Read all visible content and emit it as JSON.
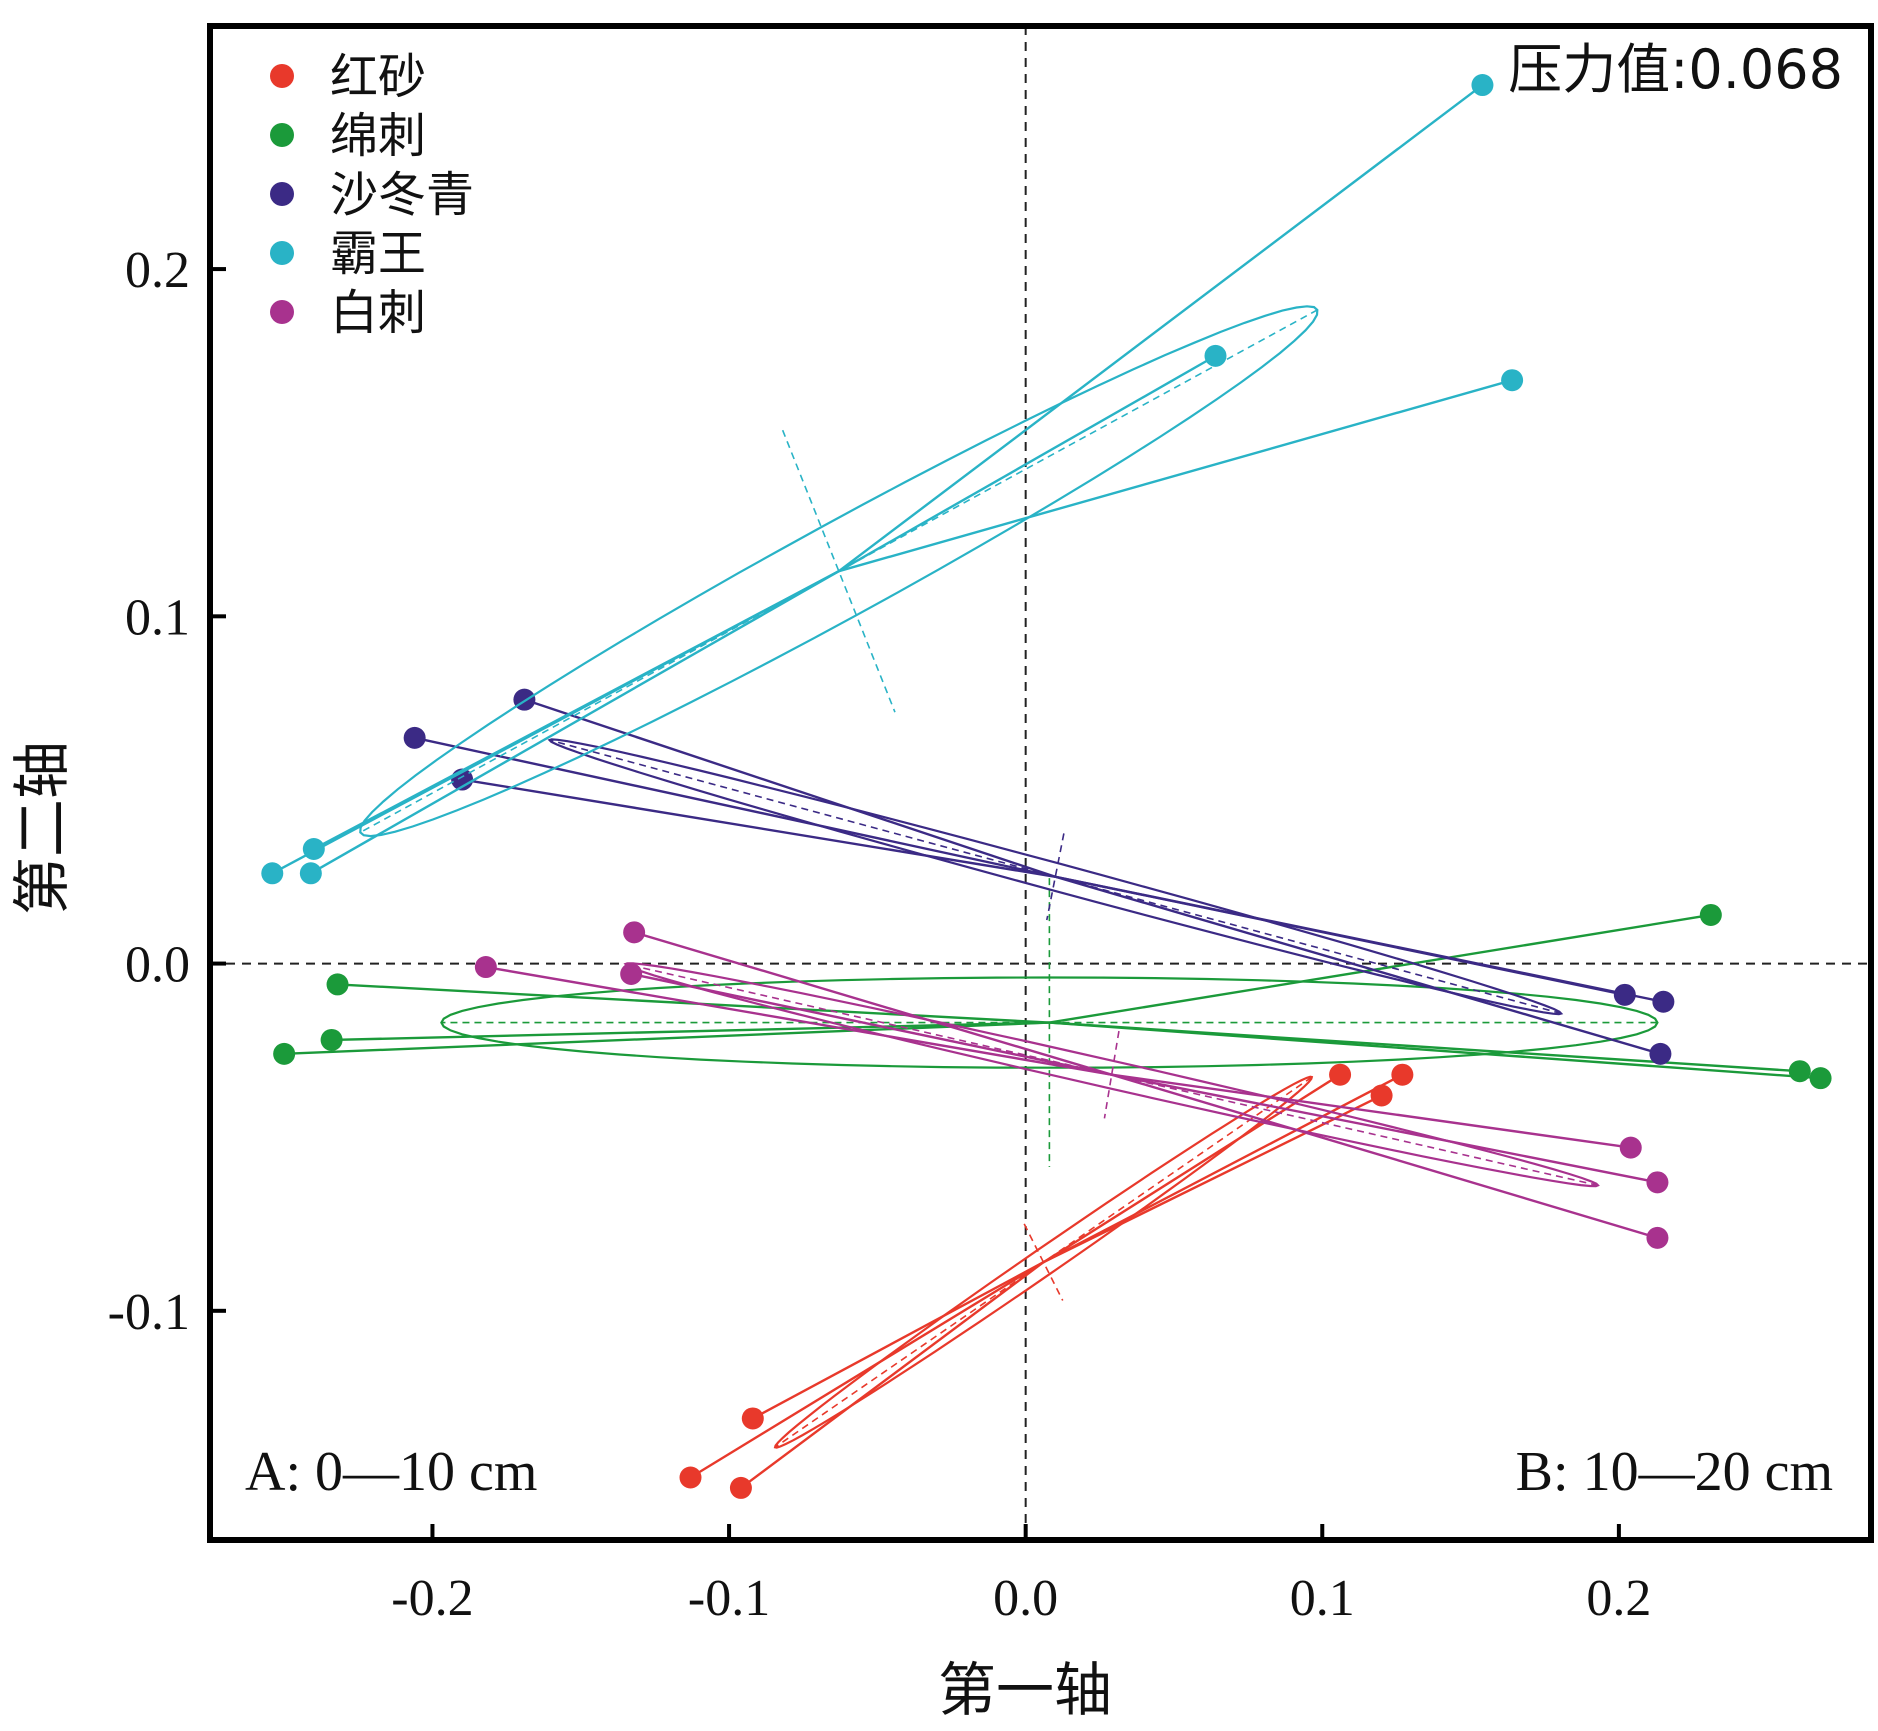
{
  "chart_data": {
    "type": "scatter",
    "xlabel": "第一轴",
    "ylabel": "第二轴",
    "xlim": [
      -0.275,
      0.285
    ],
    "ylim": [
      -0.166,
      0.27
    ],
    "xticks": [
      "-0.2",
      "-0.1",
      "0.0",
      "0.1",
      "0.2"
    ],
    "xtick_values": [
      -0.2,
      -0.1,
      0.0,
      0.1,
      0.2
    ],
    "yticks": [
      "0.2",
      "0.1",
      "0.0",
      "-0.1"
    ],
    "ytick_values": [
      0.2,
      0.1,
      0.0,
      -0.1
    ],
    "reference_lines": {
      "x": 0,
      "y": 0,
      "style": "dashed"
    },
    "legend_position": "top-left",
    "stress_label": "压力值:0.068",
    "annotations": {
      "left": "A: 0—10 cm",
      "right": "B: 10—20 cm"
    },
    "series": [
      {
        "name": "红砂",
        "color": "#e8392b",
        "points": [
          [
            -0.092,
            -0.131
          ],
          [
            -0.113,
            -0.148
          ],
          [
            -0.096,
            -0.151
          ],
          [
            0.106,
            -0.032
          ],
          [
            0.12,
            -0.038
          ],
          [
            0.127,
            -0.032
          ]
        ],
        "centroid": [
          0.006,
          -0.086
        ],
        "ellipse": {
          "a": 0.105,
          "b": 0.004,
          "angle_deg": 30.5
        }
      },
      {
        "name": "绵刺",
        "color": "#1b9a3a",
        "points": [
          [
            -0.232,
            -0.006
          ],
          [
            -0.234,
            -0.022
          ],
          [
            -0.25,
            -0.026
          ],
          [
            0.231,
            0.014
          ],
          [
            0.261,
            -0.031
          ],
          [
            0.268,
            -0.033
          ]
        ],
        "centroid": [
          0.008,
          -0.017
        ],
        "ellipse": {
          "a": 0.205,
          "b": 0.013,
          "angle_deg": 0
        }
      },
      {
        "name": "沙冬青",
        "color": "#3b2a85",
        "points": [
          [
            -0.206,
            0.065
          ],
          [
            -0.169,
            0.076
          ],
          [
            -0.19,
            0.053
          ],
          [
            0.202,
            -0.009
          ],
          [
            0.215,
            -0.011
          ],
          [
            0.214,
            -0.026
          ]
        ],
        "centroid": [
          0.01,
          0.025
        ],
        "ellipse": {
          "a": 0.175,
          "b": 0.004,
          "angle_deg": -13
        }
      },
      {
        "name": "霸王",
        "color": "#29b3c6",
        "points": [
          [
            -0.254,
            0.026
          ],
          [
            -0.24,
            0.033
          ],
          [
            -0.241,
            0.026
          ],
          [
            0.064,
            0.175
          ],
          [
            0.154,
            0.253
          ],
          [
            0.164,
            0.168
          ]
        ],
        "centroid": [
          -0.063,
          0.113
        ],
        "ellipse": {
          "a": 0.178,
          "b": 0.014,
          "angle_deg": 25
        }
      },
      {
        "name": "白刺",
        "color": "#a8328e",
        "points": [
          [
            -0.132,
            0.009
          ],
          [
            -0.182,
            -0.001
          ],
          [
            -0.133,
            -0.003
          ],
          [
            0.204,
            -0.053
          ],
          [
            0.213,
            -0.063
          ],
          [
            0.213,
            -0.079
          ]
        ],
        "centroid": [
          0.029,
          -0.032
        ],
        "ellipse": {
          "a": 0.167,
          "b": 0.004,
          "angle_deg": -11
        }
      }
    ]
  }
}
